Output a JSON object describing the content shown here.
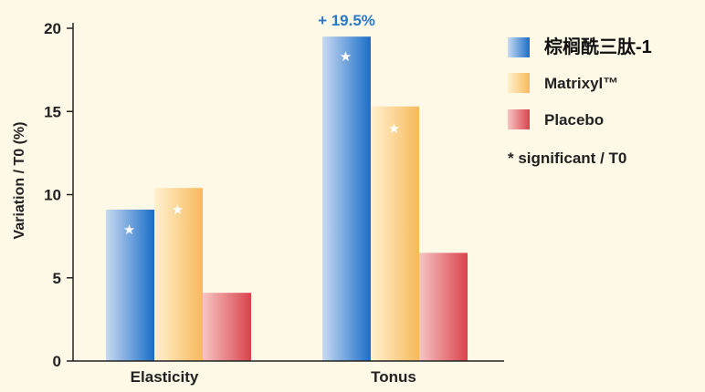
{
  "chart_data": {
    "type": "bar",
    "ylabel": "Variation / T0 (%)",
    "ylim": [
      0,
      20
    ],
    "yticks": [
      0,
      5,
      10,
      15,
      20
    ],
    "categories": [
      "Elasticity",
      "Tonus"
    ],
    "series": [
      {
        "name": "棕榈酰三肽-1",
        "values": [
          9.1,
          19.5
        ],
        "significant": [
          true,
          true
        ],
        "color_light": "#c9daf2",
        "color_dark": "#1a6ec8"
      },
      {
        "name": "Matrixyl™",
        "values": [
          10.4,
          15.3
        ],
        "significant": [
          true,
          true
        ],
        "color_light": "#fff1cf",
        "color_dark": "#f7b95a"
      },
      {
        "name": "Placebo",
        "values": [
          4.1,
          6.5
        ],
        "significant": [
          false,
          false
        ],
        "color_light": "#f6c5c3",
        "color_dark": "#d9434d"
      }
    ],
    "annotations": [
      {
        "text": "+ 19.5%",
        "series": 0,
        "category": 1,
        "color": "#2a78c6"
      }
    ],
    "legend_note": "* significant / T0",
    "legend": "right",
    "grid": false
  }
}
